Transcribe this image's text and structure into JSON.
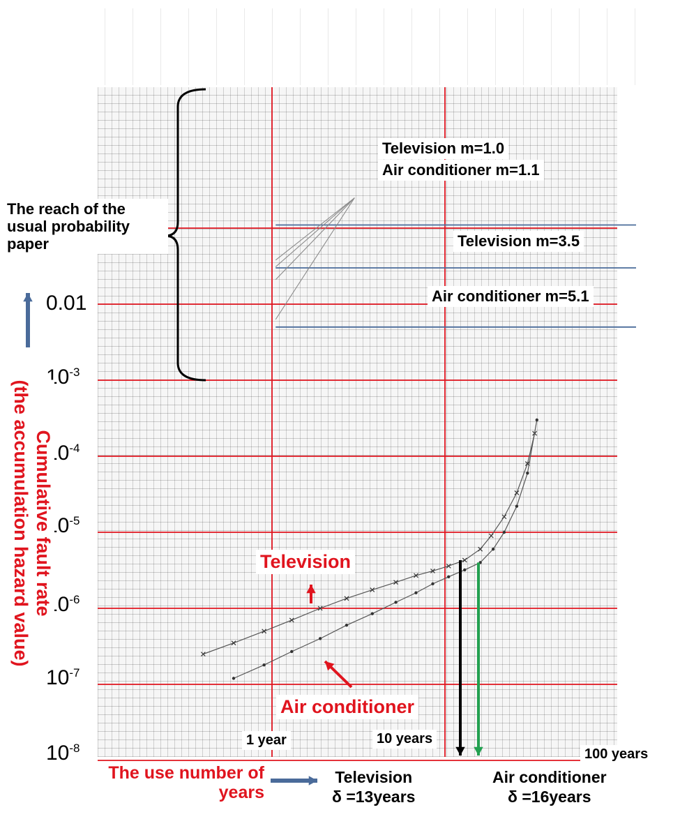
{
  "chart_data": {
    "type": "line",
    "xlabel": "The use number of years",
    "ylabel_line1": "Cumulative fault rate",
    "ylabel_line2": "(the accumulation hazard value)",
    "x_scale": "log",
    "y_scale": "log",
    "xlim": [
      0.12,
      200
    ],
    "ylim": [
      1e-08,
      0.9
    ],
    "grid": true,
    "x_ticks": [
      {
        "value": 1,
        "label": "1 year"
      },
      {
        "value": 10,
        "label": "10 years"
      },
      {
        "value": 100,
        "label": "100 years"
      }
    ],
    "y_ticks": [
      {
        "value": 0.01,
        "base": "0.01",
        "exp": ""
      },
      {
        "value": 0.001,
        "base": "10",
        "exp": "-3"
      },
      {
        "value": 0.0001,
        "base": "10",
        "exp": "-4"
      },
      {
        "value": 1e-05,
        "base": "10",
        "exp": "-5"
      },
      {
        "value": 1e-06,
        "base": "10",
        "exp": "-6"
      },
      {
        "value": 1e-07,
        "base": "10",
        "exp": "-7"
      },
      {
        "value": 1e-08,
        "base": "10",
        "exp": "-8"
      }
    ],
    "series": [
      {
        "name": "Television",
        "color": "#555555",
        "x": [
          0.4,
          0.6,
          0.9,
          1.3,
          1.9,
          2.7,
          3.8,
          5.2,
          6.8,
          8.5,
          10.5,
          13,
          16,
          18.5,
          22,
          26,
          30,
          33
        ],
        "y": [
          2.5e-07,
          3.5e-07,
          5e-07,
          7e-07,
          1e-06,
          1.35e-06,
          1.75e-06,
          2.2e-06,
          2.7e-06,
          3.1e-06,
          3.6e-06,
          4.3e-06,
          6e-06,
          9e-06,
          1.6e-05,
          3.3e-05,
          8e-05,
          0.0002
        ]
      },
      {
        "name": "Air conditioner",
        "color": "#555555",
        "x": [
          0.6,
          0.9,
          1.3,
          1.9,
          2.7,
          3.8,
          5.2,
          6.8,
          8.5,
          10.5,
          13,
          16,
          19,
          22,
          26,
          30,
          34
        ],
        "y": [
          1.2e-07,
          1.8e-07,
          2.7e-07,
          4e-07,
          6e-07,
          8.5e-07,
          1.2e-06,
          1.6e-06,
          2.1e-06,
          2.6e-06,
          3.2e-06,
          4e-06,
          6e-06,
          1e-05,
          2.2e-05,
          6e-05,
          0.0003
        ]
      }
    ],
    "slope_guides": [
      {
        "label": "Television m=1.0",
        "x": [
          1.05,
          3.0
        ],
        "y": [
          0.0063,
          0.25
        ]
      },
      {
        "label": "Air conditioner m=1.1",
        "x": [
          1.05,
          3.0
        ],
        "y": [
          0.021,
          0.25
        ]
      },
      {
        "label": "Television m=3.5",
        "x": [
          1.05,
          3.0
        ],
        "y": [
          0.031,
          0.25
        ]
      },
      {
        "label": "Air conditioner m=5.1",
        "x": [
          1.05,
          3.0
        ],
        "y": [
          0.038,
          0.25
        ]
      }
    ],
    "weibull_axis_ref_y": [
      0.11,
      0.03,
      0.005
    ],
    "annotations": {
      "reach_text": "The reach of the usual probability paper",
      "reach_range_y": [
        0.001,
        0.9
      ],
      "m_label_1": "Television m=1.0",
      "m_label_2": "Air conditioner m=1.1",
      "m_label_3": "Television m=3.5",
      "m_label_4": "Air conditioner m=5.1",
      "tv_series_label": "Television",
      "ac_series_label": "Air conditioner",
      "tv_delta_name": "Television",
      "tv_delta_value": "δ =13years",
      "ac_delta_name": "Air conditioner",
      "ac_delta_value": "δ =16years",
      "tv_lifetime_years": 13,
      "ac_lifetime_years": 16
    },
    "colors": {
      "red": "#e0141e",
      "blue": "#4a6b9a",
      "black_arrow": "#000000",
      "green_arrow": "#22a050"
    }
  }
}
